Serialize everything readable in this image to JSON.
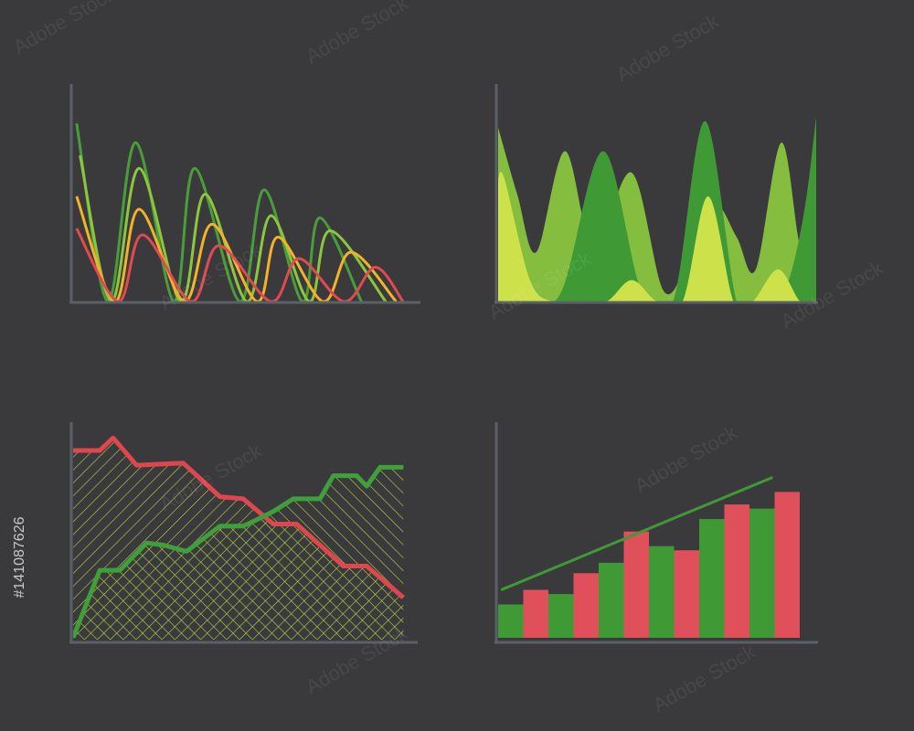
{
  "watermark": "Adobe Stock",
  "stock_id": "#141087626",
  "chart_data": [
    {
      "type": "line",
      "smooth": true,
      "xlim": [
        0,
        100
      ],
      "ylim": [
        0,
        100
      ],
      "series": [
        {
          "color": "#4a9e3a",
          "x": [
            1,
            10,
            18,
            29,
            35,
            48,
            55,
            66,
            71,
            83
          ],
          "values": [
            83,
            0,
            74,
            0,
            62,
            0,
            52,
            0,
            39,
            0
          ]
        },
        {
          "color": "#8cc63f",
          "x": [
            2,
            11,
            19,
            31,
            38,
            50,
            57,
            68,
            74,
            90
          ],
          "values": [
            68,
            0,
            62,
            0,
            50,
            0,
            40,
            0,
            33,
            0
          ]
        },
        {
          "color": "#f2b32a",
          "x": [
            1,
            12,
            19,
            32,
            40,
            53,
            59,
            72,
            80,
            93
          ],
          "values": [
            49,
            0,
            43,
            0,
            36,
            0,
            30,
            0,
            23,
            0
          ]
        },
        {
          "color": "#e04a50",
          "x": [
            1,
            13,
            20,
            34,
            42,
            57,
            65,
            78,
            87,
            95
          ],
          "values": [
            34,
            0,
            31,
            0,
            26,
            0,
            20,
            0,
            16,
            0
          ]
        }
      ]
    },
    {
      "type": "area",
      "smooth": true,
      "xlim": [
        0,
        100
      ],
      "ylim": [
        0,
        100
      ],
      "series": [
        {
          "color": "#85bd3e",
          "x": [
            0,
            6,
            12,
            21,
            30,
            42,
            52,
            60,
            68,
            75,
            81,
            89,
            95,
            100
          ],
          "values": [
            81,
            50,
            23,
            70,
            25,
            60,
            5,
            20,
            45,
            30,
            15,
            74,
            25,
            15
          ]
        },
        {
          "color": "#3f9a36",
          "x": [
            0,
            10,
            20,
            33,
            45,
            55,
            65,
            75,
            82,
            90,
            96,
            100
          ],
          "values": [
            0,
            0,
            5,
            70,
            5,
            0,
            84,
            0,
            0,
            5,
            40,
            86
          ]
        },
        {
          "color": "#cde14a",
          "x": [
            0,
            2,
            10,
            17,
            25,
            34,
            42,
            50,
            58,
            66,
            74,
            80,
            88,
            95,
            100
          ],
          "values": [
            57,
            57,
            10,
            0,
            0,
            0,
            10,
            0,
            0,
            49,
            0,
            0,
            15,
            0,
            0
          ]
        }
      ]
    },
    {
      "type": "line",
      "smooth": false,
      "fill": "hatch",
      "hatch_color": "#b5d34a",
      "xlim": [
        0,
        100
      ],
      "ylim": [
        0,
        100
      ],
      "series": [
        {
          "color": "#e0464e",
          "x": [
            0,
            8,
            12,
            19,
            33,
            44,
            51,
            60,
            67,
            81,
            88,
            99
          ],
          "values": [
            90,
            90,
            96,
            83,
            84,
            68,
            67,
            55,
            55,
            35,
            35,
            20
          ]
        },
        {
          "color": "#3f9f3a",
          "x": [
            0,
            8,
            14,
            22,
            27,
            34,
            44,
            51,
            55,
            60,
            66,
            74,
            78,
            85,
            88,
            92,
            99
          ],
          "values": [
            1,
            33,
            33,
            46,
            45,
            42,
            54,
            54,
            57,
            61,
            67,
            67,
            78,
            78,
            73,
            82,
            82
          ]
        }
      ]
    },
    {
      "type": "bar",
      "xlim": [
        0,
        100
      ],
      "ylim": [
        0,
        100
      ],
      "categories": [
        null,
        null,
        null,
        null,
        null,
        null,
        null,
        null,
        null,
        null,
        null,
        null
      ],
      "values": [
        16,
        23,
        21,
        31,
        36,
        51,
        44,
        42,
        57,
        64,
        62,
        70
      ],
      "colors": [
        "#3f9a35",
        "#e0505a",
        "#3f9a35",
        "#e0505a",
        "#3f9a35",
        "#e0505a",
        "#3f9a35",
        "#e0505a",
        "#3f9a35",
        "#e0505a",
        "#3f9a35",
        "#e0505a"
      ],
      "trend": {
        "color": "#3f9a35",
        "x": [
          1,
          91
        ],
        "values": [
          23,
          77
        ]
      }
    }
  ]
}
